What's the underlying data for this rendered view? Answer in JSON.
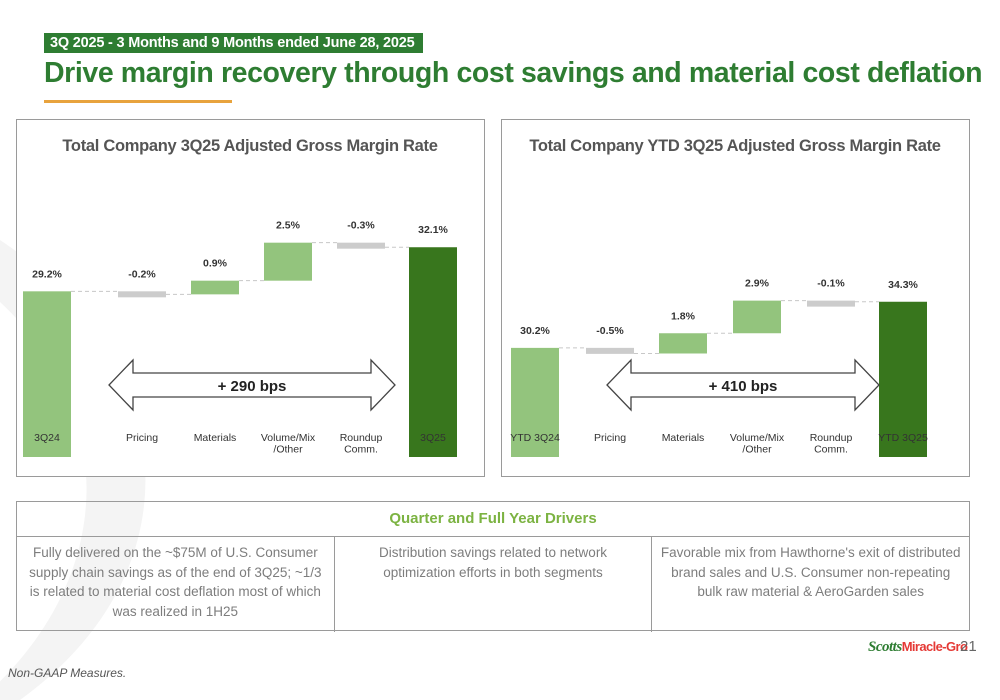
{
  "header": {
    "eyebrow": "3Q 2025 - 3 Months and 9 Months ended June 28, 2025",
    "title": "Drive margin recovery through cost savings and material cost deflation"
  },
  "colors": {
    "brand_green": "#2e7d32",
    "light_green": "#93c47d",
    "dark_green": "#38761d",
    "negative_gray": "#cccccc",
    "accent_orange": "#e8a33d",
    "drivers_head": "#7cb342"
  },
  "chart_data": [
    {
      "type": "waterfall",
      "title": "Total Company 3Q25 Adjusted Gross Margin Rate",
      "categories": [
        "3Q24",
        "Pricing",
        "Materials",
        "Volume/Mix /Other",
        "Roundup Comm.",
        "3Q25"
      ],
      "values": [
        29.2,
        -0.2,
        0.9,
        2.5,
        -0.3,
        32.1
      ],
      "kinds": [
        "total",
        "delta",
        "delta",
        "delta",
        "delta",
        "total"
      ],
      "labels": [
        "29.2%",
        "-0.2%",
        "0.9%",
        "2.5%",
        "-0.3%",
        "32.1%"
      ],
      "annotation": "+ 290 bps"
    },
    {
      "type": "waterfall",
      "title": "Total Company YTD 3Q25 Adjusted Gross Margin Rate",
      "categories": [
        "YTD 3Q24",
        "Pricing",
        "Materials",
        "Volume/Mix /Other",
        "Roundup Comm.",
        "YTD 3Q25"
      ],
      "values": [
        30.2,
        -0.5,
        1.8,
        2.9,
        -0.1,
        34.3
      ],
      "kinds": [
        "total",
        "delta",
        "delta",
        "delta",
        "delta",
        "total"
      ],
      "labels": [
        "30.2%",
        "-0.5%",
        "1.8%",
        "2.9%",
        "-0.1%",
        "34.3%"
      ],
      "annotation": "+ 410 bps"
    }
  ],
  "drivers": {
    "heading": "Quarter and Full Year Drivers",
    "items": [
      "Fully delivered on the ~$75M of U.S. Consumer supply chain savings as of the end of 3Q25;  ~1/3 is related to material cost deflation most of which was realized in 1H25",
      "Distribution savings related to network optimization efforts in both segments",
      "Favorable mix from Hawthorne's exit of distributed brand sales and U.S. Consumer non-repeating bulk raw material & AeroGarden sales"
    ]
  },
  "footer": {
    "logo_main": "Scotts",
    "logo_sup": "Miracle-Gro",
    "page_number": "21",
    "footnote": "Non-GAAP Measures."
  }
}
